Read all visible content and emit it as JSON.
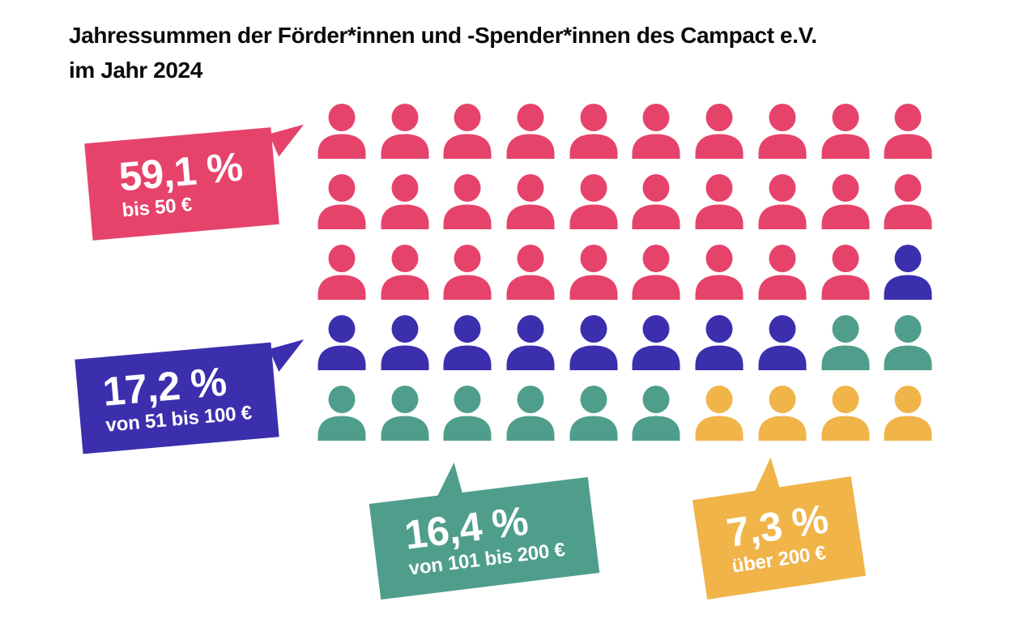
{
  "page": {
    "title_line1": "Jahressummen der Förder*innen und -Spender*innen des Campact e.V.",
    "title_line2": "im Jahr 2024"
  },
  "chart_data": {
    "type": "pictogram",
    "title": "Jahressummen der Förder*innen und -Spender*innen des Campact e.V. im Jahr 2024",
    "total_icons": 50,
    "icons_per_row": 10,
    "icon": "person-icon",
    "legend_position": "speech-bubbles",
    "categories": [
      {
        "id": "bis-50",
        "percent_label": "59,1 %",
        "value_percent": 59.1,
        "range_label": "bis 50 €",
        "color": "#e6436b",
        "icon_count": 29
      },
      {
        "id": "von-51-bis-100",
        "percent_label": "17,2 %",
        "value_percent": 17.2,
        "range_label": "von 51 bis 100 €",
        "color": "#3b2fae",
        "icon_count": 9
      },
      {
        "id": "von-101-bis-200",
        "percent_label": "16,4 %",
        "value_percent": 16.4,
        "range_label": "von 101 bis 200 €",
        "color": "#4f9e8b",
        "icon_count": 8
      },
      {
        "id": "ueber-200",
        "percent_label": "7,3 %",
        "value_percent": 7.3,
        "range_label": "über 200 €",
        "color": "#f0b449",
        "icon_count": 4
      }
    ]
  }
}
